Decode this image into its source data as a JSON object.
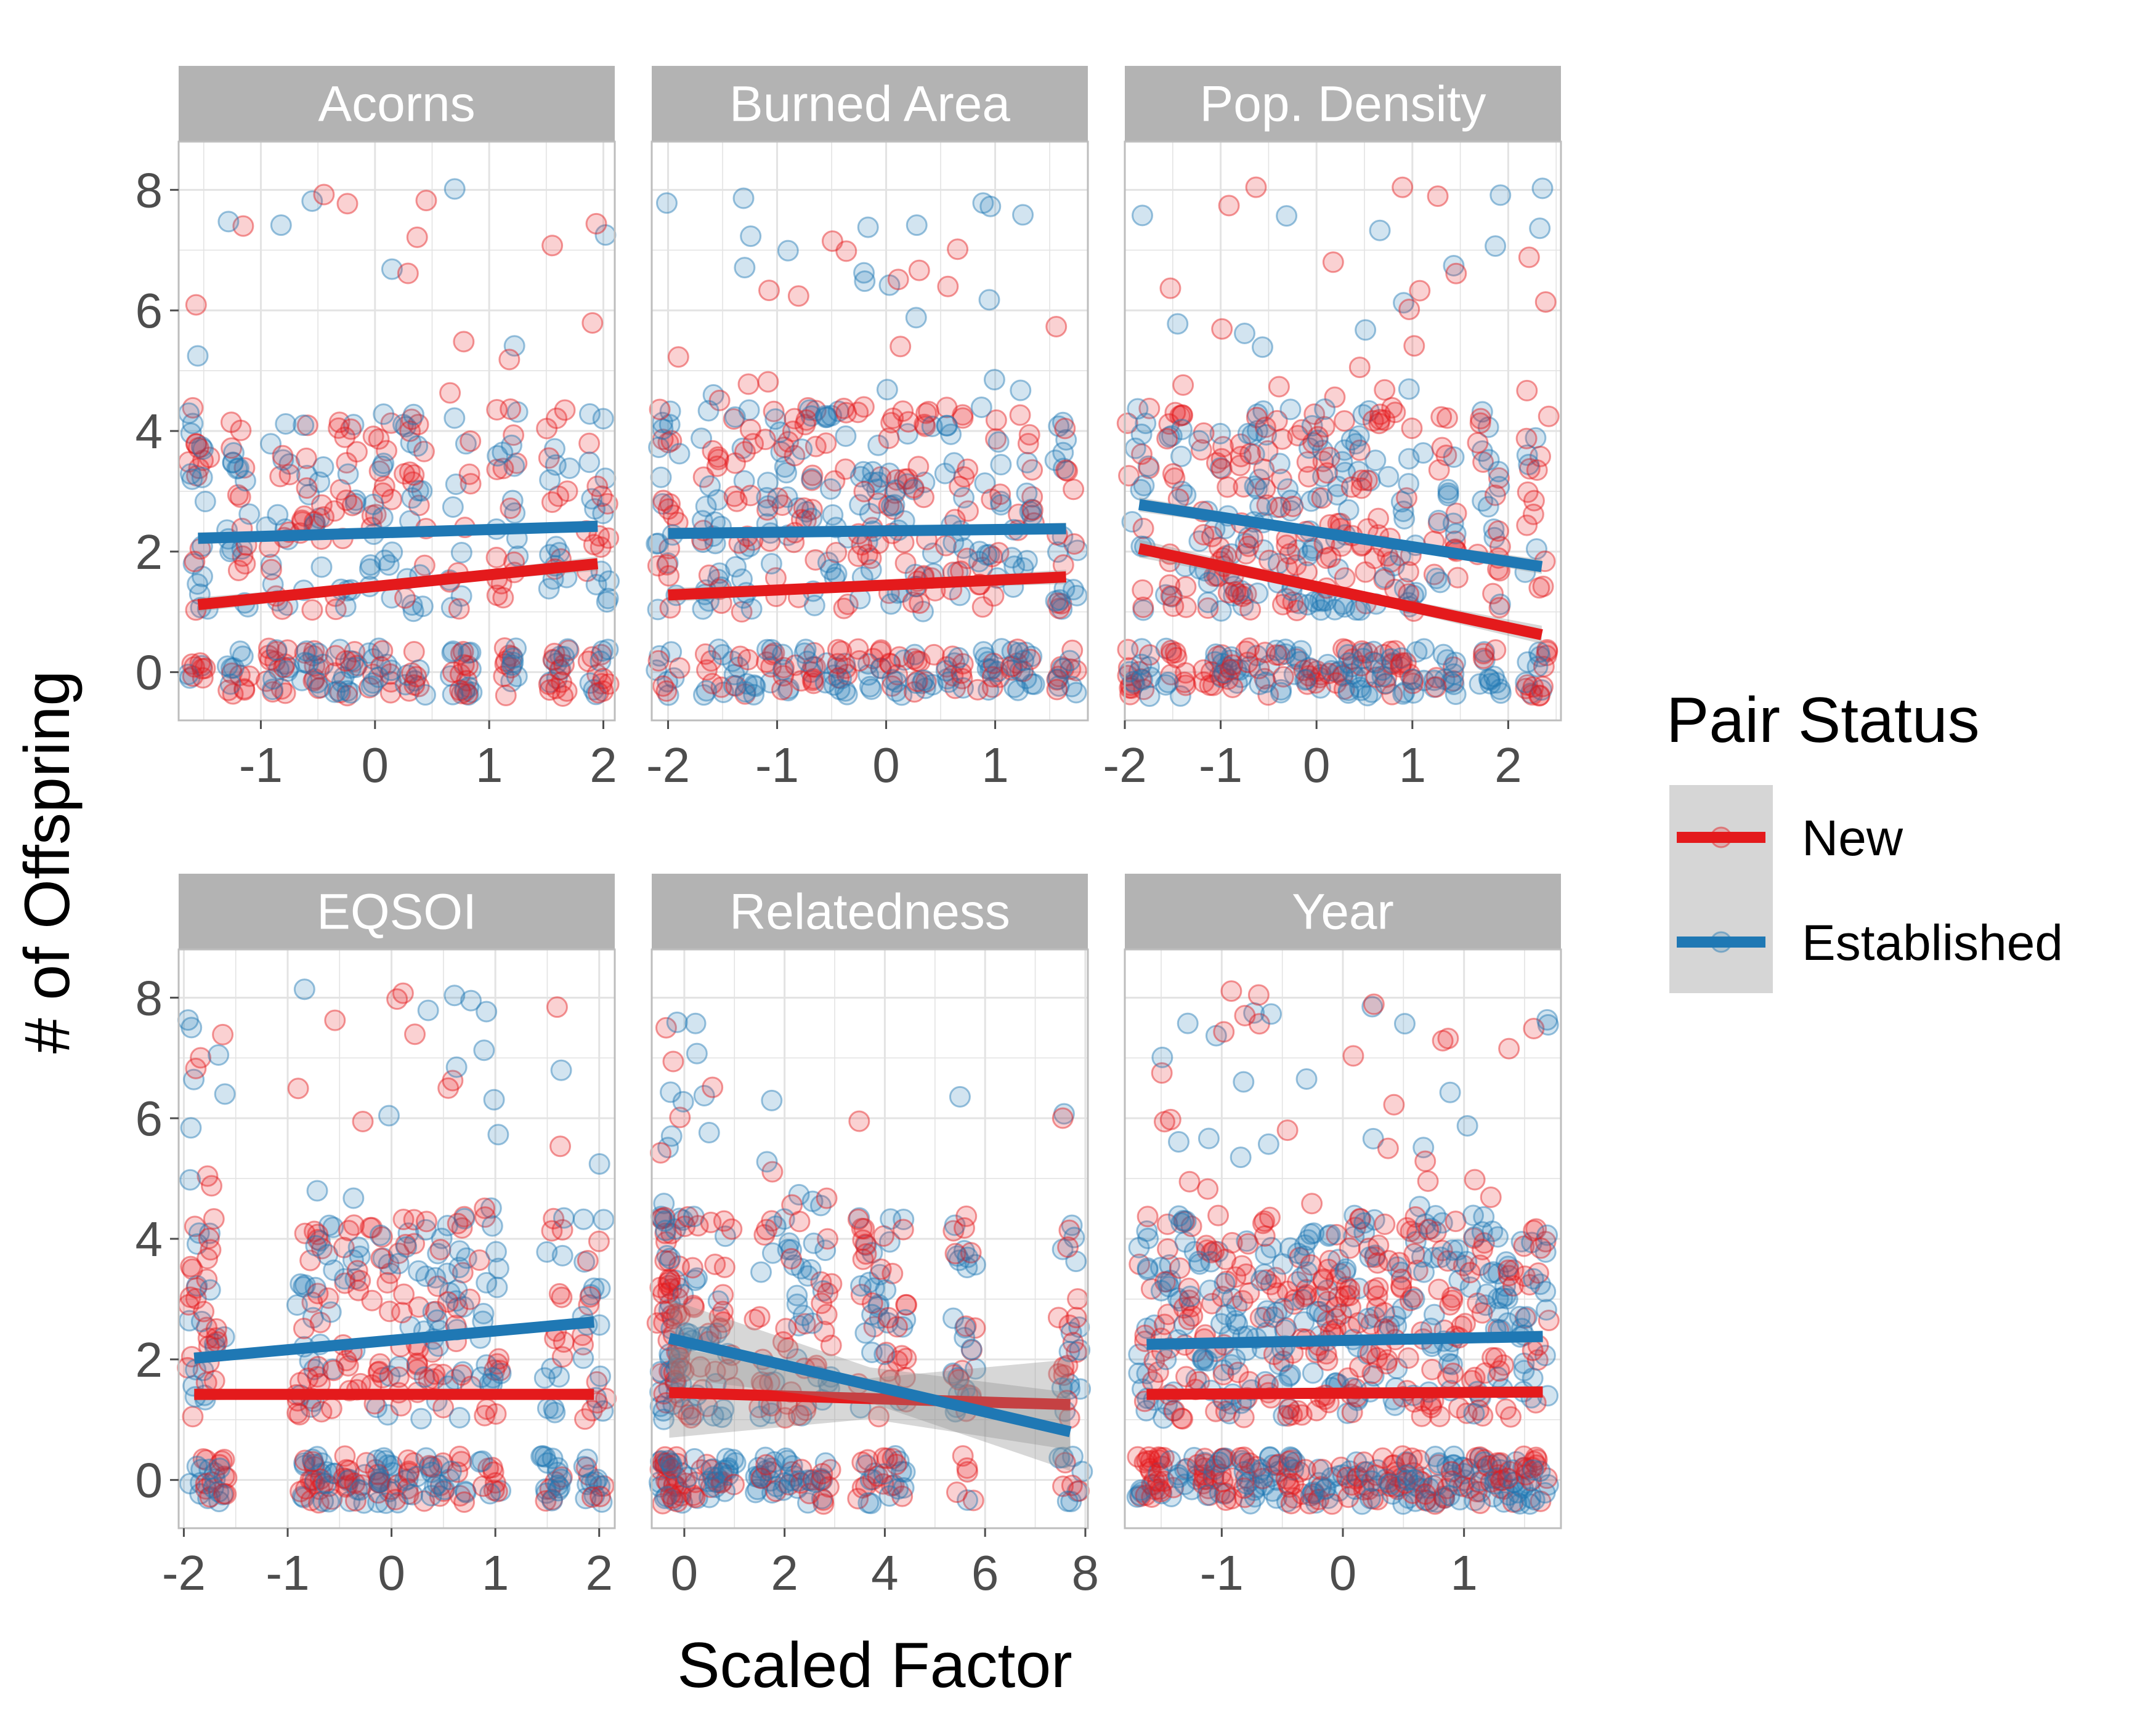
{
  "chart_data": {
    "type": "scatter",
    "xlabel": "Scaled Factor",
    "ylabel": "# of Offspring",
    "legend": {
      "title": "Pair Status",
      "placement": "right",
      "entries": [
        {
          "name": "New",
          "color": "#e41a1c"
        },
        {
          "name": "Established",
          "color": "#1f78b4"
        }
      ]
    },
    "grid": true,
    "ylim": [
      -0.8,
      8.8
    ],
    "yticks": [
      0,
      2,
      4,
      6,
      8
    ],
    "panels": [
      {
        "title": "Acorns",
        "xlim": [
          -1.72,
          2.1
        ],
        "xticks": [
          -1,
          0,
          1,
          2
        ],
        "x_clusters": [
          -1.55,
          -1.2,
          -0.85,
          -0.55,
          -0.25,
          0.05,
          0.35,
          0.75,
          1.15,
          1.6,
          1.95
        ],
        "fits": [
          {
            "series": "New",
            "x": [
              -1.55,
              1.95
            ],
            "y": [
              1.12,
              1.8
            ],
            "band": 0.12
          },
          {
            "series": "Established",
            "x": [
              -1.55,
              1.95
            ],
            "y": [
              2.22,
              2.42
            ],
            "band": 0.1
          }
        ]
      },
      {
        "title": "Burned Area",
        "xlim": [
          -2.15,
          1.85
        ],
        "xticks": [
          -2,
          -1,
          0,
          1
        ],
        "x_clusters": [
          -2.0,
          -1.6,
          -1.3,
          -1.0,
          -0.75,
          -0.45,
          -0.15,
          0.1,
          0.35,
          0.65,
          0.95,
          1.25,
          1.65
        ],
        "fits": [
          {
            "series": "New",
            "x": [
              -2.0,
              1.65
            ],
            "y": [
              1.28,
              1.58
            ],
            "band": 0.12
          },
          {
            "series": "Established",
            "x": [
              -2.0,
              1.65
            ],
            "y": [
              2.3,
              2.38
            ],
            "band": 0.1
          }
        ]
      },
      {
        "title": "Pop. Density",
        "xlim": [
          -2.0,
          2.55
        ],
        "xticks": [
          -2,
          -1,
          0,
          1,
          2
        ],
        "x_clusters": [
          -1.85,
          -1.45,
          -1.1,
          -0.85,
          -0.6,
          -0.3,
          -0.05,
          0.2,
          0.45,
          0.7,
          1.0,
          1.35,
          1.8,
          2.3
        ],
        "fits": [
          {
            "series": "New",
            "x": [
              -1.85,
              2.35
            ],
            "y": [
              2.05,
              0.62
            ],
            "band": 0.15
          },
          {
            "series": "Established",
            "x": [
              -1.85,
              2.35
            ],
            "y": [
              2.78,
              1.75
            ],
            "band": 0.12
          }
        ]
      },
      {
        "title": "EQSOI",
        "xlim": [
          -2.05,
          2.15
        ],
        "xticks": [
          -2,
          -1,
          0,
          1,
          2
        ],
        "x_clusters": [
          -1.85,
          -1.7,
          -0.8,
          -0.65,
          -0.35,
          -0.1,
          0.15,
          0.4,
          0.65,
          0.95,
          1.55,
          1.95
        ],
        "fits": [
          {
            "series": "New",
            "x": [
              -1.9,
              1.95
            ],
            "y": [
              1.42,
              1.42
            ],
            "band": 0.1
          },
          {
            "series": "Established",
            "x": [
              -1.9,
              1.95
            ],
            "y": [
              2.02,
              2.62
            ],
            "band": 0.1
          }
        ]
      },
      {
        "title": "Relatedness",
        "xlim": [
          -0.65,
          8.05
        ],
        "xticks": [
          0,
          2,
          4,
          6,
          8
        ],
        "x_clusters": [
          -0.3,
          -0.25,
          -0.2,
          0.3,
          0.8,
          1.6,
          2.2,
          2.7,
          3.7,
          4.2,
          5.6,
          7.7
        ],
        "fits": [
          {
            "series": "New",
            "x": [
              -0.3,
              7.7
            ],
            "y": [
              1.45,
              1.25
            ],
            "band": 0.75
          },
          {
            "series": "Established",
            "x": [
              -0.3,
              7.7
            ],
            "y": [
              2.35,
              0.8
            ],
            "band": 0.65
          }
        ]
      },
      {
        "title": "Year",
        "xlim": [
          -1.8,
          1.8
        ],
        "xticks": [
          -1,
          0,
          1
        ],
        "x_clusters": [
          -1.62,
          -1.45,
          -1.28,
          -1.11,
          -0.94,
          -0.77,
          -0.6,
          -0.43,
          -0.26,
          -0.09,
          0.08,
          0.25,
          0.42,
          0.59,
          0.76,
          0.93,
          1.1,
          1.27,
          1.44,
          1.62
        ],
        "fits": [
          {
            "series": "New",
            "x": [
              -1.62,
              1.65
            ],
            "y": [
              1.42,
              1.46
            ],
            "band": 0.1
          },
          {
            "series": "Established",
            "x": [
              -1.62,
              1.65
            ],
            "y": [
              2.25,
              2.38
            ],
            "band": 0.1
          }
        ]
      }
    ]
  }
}
